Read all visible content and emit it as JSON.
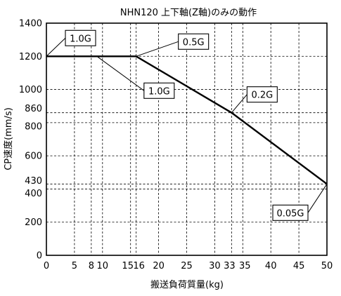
{
  "chart_data": {
    "type": "line",
    "title": "NHN120 上下軸(Z軸)のみの動作",
    "xlabel": "搬送負荷質量(kg)",
    "ylabel": "CP速度(mm/s)",
    "xlim": [
      0,
      50
    ],
    "ylim": [
      0,
      1400
    ],
    "xticks": [
      0,
      5,
      8,
      10,
      15,
      16,
      20,
      25,
      30,
      33,
      35,
      40,
      45,
      50
    ],
    "yticks": [
      0,
      200,
      400,
      430,
      600,
      800,
      860,
      1000,
      1200,
      1400
    ],
    "grid": true,
    "series": [
      {
        "x": [
          0,
          16,
          33,
          50
        ],
        "y": [
          1200,
          1200,
          860,
          430
        ]
      }
    ],
    "annotations": [
      {
        "text": "1.0G",
        "x": 0,
        "y": 1200
      },
      {
        "text": "1.0G",
        "x": 9,
        "y": 1200
      },
      {
        "text": "0.5G",
        "x": 16,
        "y": 1200
      },
      {
        "text": "0.2G",
        "x": 33,
        "y": 860
      },
      {
        "text": "0.05G",
        "x": 50,
        "y": 430
      }
    ]
  }
}
